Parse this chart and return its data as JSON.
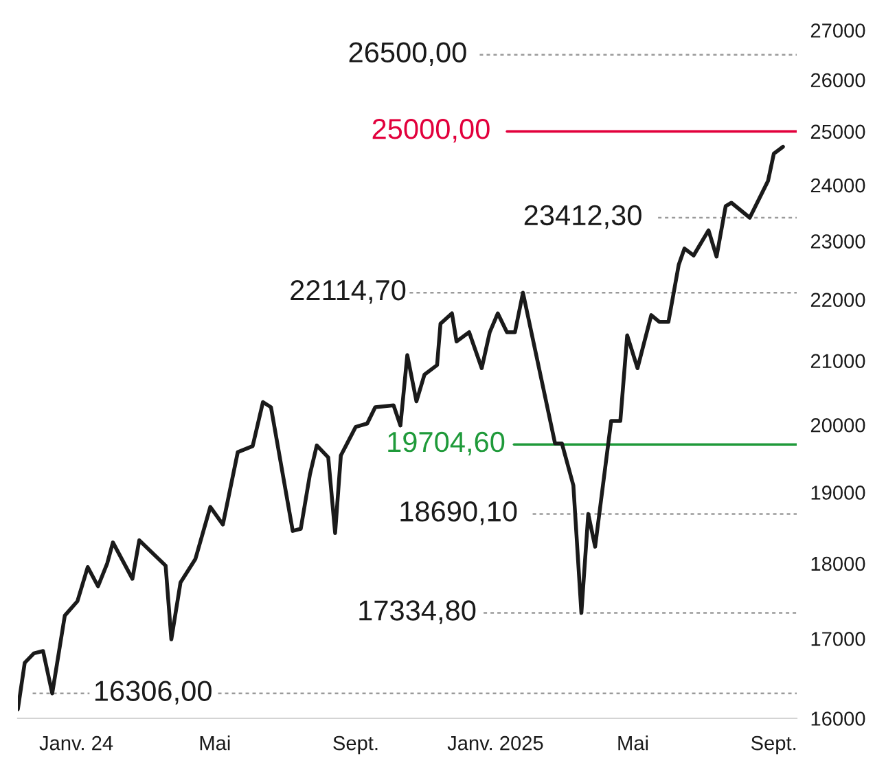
{
  "chart_data": {
    "type": "line",
    "color": "#1a1a1a",
    "log": true,
    "x": [
      "2023-11-11",
      "2023-11-17",
      "2023-11-25",
      "2023-12-03",
      "2023-12-11",
      "2023-12-22",
      "2024-01-02",
      "2024-01-11",
      "2024-01-20",
      "2024-01-28",
      "2024-02-02",
      "2024-02-19",
      "2024-02-25",
      "2024-03-19",
      "2024-03-24",
      "2024-04-01",
      "2024-04-14",
      "2024-04-27",
      "2024-05-08",
      "2024-05-21",
      "2024-06-03",
      "2024-06-12",
      "2024-06-19",
      "2024-07-08",
      "2024-07-15",
      "2024-07-23",
      "2024-07-29",
      "2024-08-08",
      "2024-08-14",
      "2024-08-19",
      "2024-09-01",
      "2024-09-11",
      "2024-09-18",
      "2024-10-04",
      "2024-10-10",
      "2024-10-16",
      "2024-10-24",
      "2024-10-31",
      "2024-11-11",
      "2024-11-14",
      "2024-11-24",
      "2024-11-28",
      "2024-12-09",
      "2024-12-20",
      "2024-12-27",
      "2025-01-03",
      "2025-01-11",
      "2025-01-18",
      "2025-01-25",
      "2025-02-22",
      "2025-02-28",
      "2025-03-10",
      "2025-03-17",
      "2025-03-23",
      "2025-03-29",
      "2025-04-12",
      "2025-04-20",
      "2025-04-26",
      "2025-05-05",
      "2025-05-17",
      "2025-05-24",
      "2025-06-01",
      "2025-06-10",
      "2025-06-15",
      "2025-06-23",
      "2025-07-06",
      "2025-07-13",
      "2025-07-21",
      "2025-07-26",
      "2025-08-11",
      "2025-08-27",
      "2025-09-01",
      "2025-09-09"
    ],
    "values": [
      16110,
      16690,
      16810,
      16840,
      16306,
      17300,
      17490,
      17950,
      17690,
      18000,
      18290,
      17790,
      18320,
      17970,
      16990,
      17740,
      18060,
      18790,
      18540,
      19590,
      19680,
      20350,
      20270,
      18450,
      18480,
      19260,
      19690,
      19510,
      18420,
      19540,
      19970,
      20020,
      20270,
      20300,
      19990,
      21090,
      20360,
      20780,
      20930,
      21600,
      21770,
      21310,
      21460,
      20880,
      21460,
      21770,
      21460,
      21460,
      22114.7,
      19720,
      19720,
      19100,
      17334.8,
      18690.1,
      18230,
      20060,
      20060,
      21410,
      20880,
      21740,
      21630,
      21630,
      22590,
      22870,
      22750,
      23190,
      22730,
      23620,
      23680,
      23412.3,
      24080,
      24580,
      24710
    ],
    "xlim": [
      "2023-11-11",
      "2025-09-21"
    ],
    "xticks": [
      {
        "value": "2024-01-01",
        "label": "Janv. 24"
      },
      {
        "value": "2024-05-01",
        "label": "Mai"
      },
      {
        "value": "2024-09-01",
        "label": "Sept."
      },
      {
        "value": "2025-01-01",
        "label": "Janv. 2025"
      },
      {
        "value": "2025-05-01",
        "label": "Mai"
      },
      {
        "value": "2025-09-01",
        "label": "Sept."
      }
    ],
    "ylim": [
      16000,
      27000
    ],
    "yticks": [
      16000,
      17000,
      18000,
      19000,
      20000,
      21000,
      22000,
      23000,
      24000,
      25000,
      26000,
      27000
    ],
    "ref_lines": [
      {
        "axis": "y",
        "value": 26500,
        "label": "26500,00",
        "color": "#9a9a9a",
        "line_style": "dotted"
      },
      {
        "axis": "y",
        "value": 25000,
        "label": "25000,00",
        "color": "#e2003c",
        "line_style": "solid"
      },
      {
        "axis": "y",
        "value": 23412.3,
        "label": "23412,30",
        "color": "#9a9a9a",
        "line_style": "dotted"
      },
      {
        "axis": "y",
        "value": 22114.7,
        "label": "22114,70",
        "color": "#9a9a9a",
        "line_style": "dotted"
      },
      {
        "axis": "y",
        "value": 19704.6,
        "label": "19704,60",
        "color": "#1f9a3a",
        "line_style": "solid"
      },
      {
        "axis": "y",
        "value": 18690.1,
        "label": "18690,10",
        "color": "#9a9a9a",
        "line_style": "dotted"
      },
      {
        "axis": "y",
        "value": 17334.8,
        "label": "17334,80",
        "color": "#9a9a9a",
        "line_style": "dotted"
      },
      {
        "axis": "y",
        "value": 16306,
        "label": "16306,00",
        "color": "#9a9a9a",
        "line_style": "dotted"
      }
    ]
  }
}
